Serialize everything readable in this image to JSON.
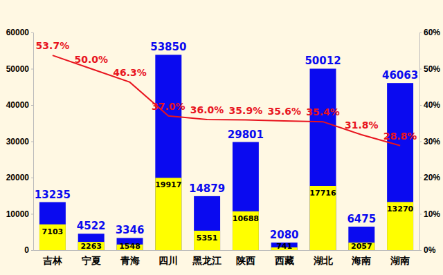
{
  "chart_data": {
    "type": "bar",
    "categories": [
      "吉林",
      "宁夏",
      "青海",
      "四川",
      "黑龙江",
      "陕西",
      "西藏",
      "湖北",
      "海南",
      "湖南"
    ],
    "series": [
      {
        "type": "bar",
        "color": "#0A0AF0",
        "values": [
          13235,
          4522,
          3346,
          53850,
          14879,
          29801,
          2080,
          50012,
          6475,
          46063
        ]
      },
      {
        "type": "bar",
        "color": "#FFFF00",
        "values": [
          7103,
          2263,
          1548,
          19917,
          5351,
          10688,
          741,
          17716,
          2057,
          13270
        ]
      },
      {
        "type": "line",
        "axis": "y2",
        "color": "#E8141E",
        "values": [
          53.7,
          50.0,
          46.3,
          37.0,
          36.0,
          35.9,
          35.6,
          35.4,
          31.8,
          28.8
        ],
        "value_labels": [
          "53.7%",
          "50.0%",
          "46.3%",
          "37.0%",
          "36.0%",
          "35.9%",
          "35.6%",
          "35.4%",
          "31.8%",
          "28.8%"
        ]
      }
    ],
    "ylim": [
      0,
      60000
    ],
    "yticks": [
      0,
      10000,
      20000,
      30000,
      40000,
      50000,
      60000
    ],
    "y2lim": [
      0,
      60
    ],
    "y2ticks": [
      {
        "value": 0,
        "label": "0%"
      },
      {
        "value": 10,
        "label": "10%"
      },
      {
        "value": 20,
        "label": "20%"
      },
      {
        "value": 30,
        "label": "30%"
      },
      {
        "value": 40,
        "label": "40%"
      },
      {
        "value": 50,
        "label": "50%"
      },
      {
        "value": 60,
        "label": "60%"
      }
    ],
    "grid": false,
    "data_labels": true
  }
}
